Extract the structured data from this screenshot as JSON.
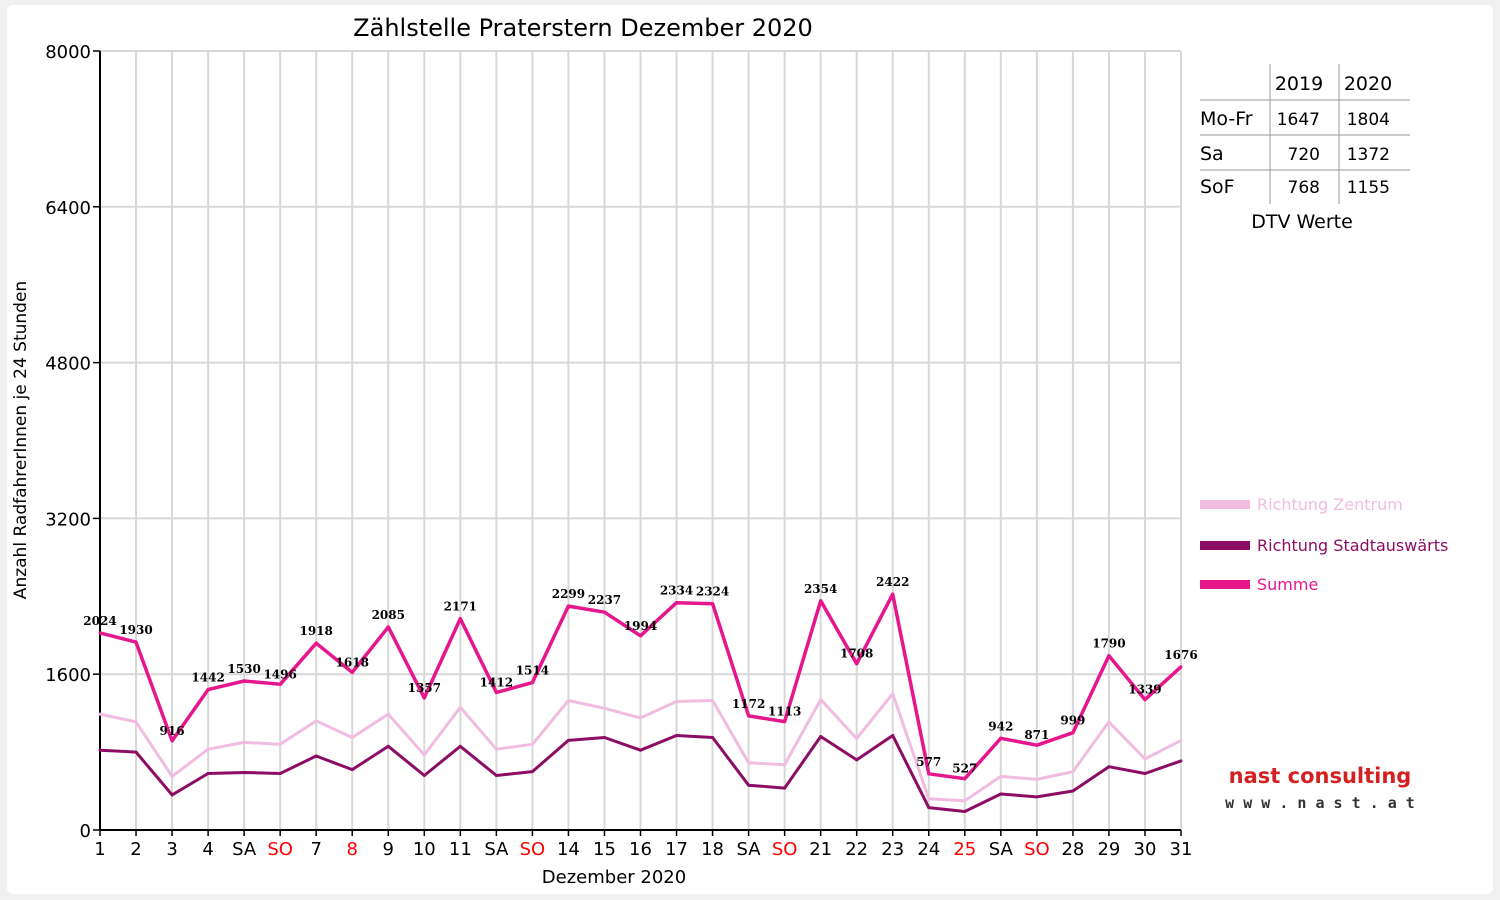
{
  "colors": {
    "zentrum": "#f0bde0",
    "stadtauswaerts": "#8c0d63",
    "summe": "#e6168d",
    "weekend_label": "#ff0000",
    "grid": "#d8d8d8"
  },
  "chart_data": {
    "type": "line",
    "title": "Zählstelle Praterstern Dezember 2020",
    "xlabel": "Dezember 2020",
    "ylabel": "Anzahl RadfahrerInnen je 24 Stunden",
    "ylim": [
      0,
      8000
    ],
    "yticks": [
      "0",
      "1600",
      "3200",
      "4800",
      "6400",
      "8000"
    ],
    "grid": true,
    "legend_position": "right",
    "categories": [
      "1",
      "2",
      "3",
      "4",
      "SA",
      "SO",
      "7",
      "8",
      "9",
      "10",
      "11",
      "SA",
      "SO",
      "14",
      "15",
      "16",
      "17",
      "18",
      "SA",
      "SO",
      "21",
      "22",
      "23",
      "24",
      "25",
      "SA",
      "SO",
      "28",
      "29",
      "30",
      "31"
    ],
    "red_categories": [
      5,
      12,
      19,
      24,
      26,
      7
    ],
    "series": [
      {
        "name": "Richtung Zentrum",
        "color_key": "zentrum",
        "values": [
          1190,
          1110,
          550,
          830,
          900,
          880,
          1120,
          950,
          1190,
          770,
          1260,
          830,
          880,
          1330,
          1250,
          1150,
          1320,
          1330,
          690,
          670,
          1340,
          940,
          1400,
          320,
          300,
          550,
          520,
          600,
          1110,
          730,
          920
        ]
      },
      {
        "name": "Richtung Stadtauswärts",
        "color_key": "stadtauswaerts",
        "values": [
          820,
          800,
          360,
          580,
          590,
          580,
          760,
          620,
          860,
          560,
          860,
          560,
          600,
          920,
          950,
          820,
          970,
          950,
          460,
          430,
          960,
          720,
          970,
          230,
          190,
          370,
          340,
          400,
          650,
          580,
          710
        ]
      },
      {
        "name": "Summe",
        "color_key": "summe",
        "values": [
          2024,
          1930,
          916,
          1442,
          1530,
          1496,
          1918,
          1618,
          2085,
          1357,
          2171,
          1412,
          1514,
          2299,
          2237,
          1994,
          2334,
          2324,
          1172,
          1113,
          2354,
          1708,
          2422,
          577,
          527,
          942,
          871,
          999,
          1790,
          1339,
          1676
        ],
        "labels": [
          "2024",
          "1930",
          "916",
          "1442",
          "1530",
          "1496",
          "1918",
          "1618",
          "2085",
          "1357",
          "2171",
          "1412",
          "1514",
          "2299",
          "2237",
          "1994",
          "2334",
          "2324",
          "1172",
          "1113",
          "2354",
          "1708",
          "2422",
          "577",
          "527",
          "942",
          "871",
          "999",
          "1790",
          "1339",
          "1676"
        ]
      }
    ]
  },
  "dtv_table": {
    "headers": [
      "2019",
      "2020"
    ],
    "rows": [
      {
        "label": "Mo-Fr",
        "v2019": "1647",
        "v2020": "1804"
      },
      {
        "label": "Sa",
        "v2019": "720",
        "v2020": "1372"
      },
      {
        "label": "SoF",
        "v2019": "768",
        "v2020": "1155"
      }
    ],
    "caption": "DTV Werte"
  },
  "logo": {
    "line1": "nast consulting",
    "line2": "w w w . n a s t . a t"
  }
}
